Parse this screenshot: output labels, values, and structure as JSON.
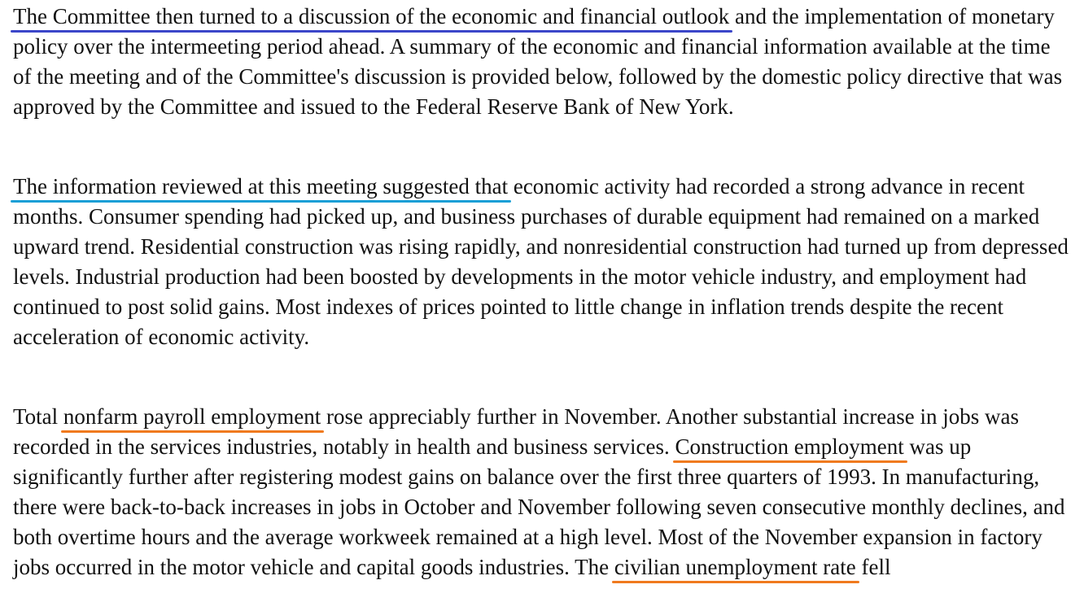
{
  "paragraphs": [
    {
      "p1_hl": "The Committee then turned to a discussion of the economic and financial outlook",
      "p1_rest": " and the implementation of monetary policy over the intermeeting period ahead. A summary of the economic and financial information available at the time of the meeting and of the Committee's discussion is provided below, followed by the domestic policy directive that was approved by the Committee and issued to the Federal Reserve Bank of New York."
    },
    {
      "p2_hl": "The information reviewed at this meeting suggested that",
      "p2_rest": " economic activity had recorded a strong advance in recent months. Consumer spending had picked up, and business purchases of durable equipment had remained on a marked upward trend. Residential construction was rising rapidly, and nonresidential construction had turned up from depressed levels. Industrial production had been boosted by developments in the motor vehicle industry, and employment had continued to post solid gains. Most indexes of prices pointed to little change in inflation trends despite the recent acceleration of economic activity."
    },
    {
      "p3_a": "Total ",
      "p3_hl1": "nonfarm payroll employment",
      "p3_b": " rose appreciably further in November. Another substantial increase in jobs was recorded in the services industries, notably in health and business services. ",
      "p3_hl2": "Construction employment",
      "p3_c": " was up significantly further after registering modest gains on balance over the first three quarters of 1993. In manufacturing, there were back-to-back increases in jobs in October and November following seven consecutive monthly declines, and both overtime hours and the average workweek remained at a high level. Most of the November expansion in factory jobs occurred in the motor vehicle and capital goods industries. The ",
      "p3_hl3": "civilian unemployment rate",
      "p3_d": " fell"
    }
  ],
  "underline_colors": {
    "blue": "#3b46c9",
    "cyan": "#1a9fd6",
    "orange": "#f07a1e"
  }
}
